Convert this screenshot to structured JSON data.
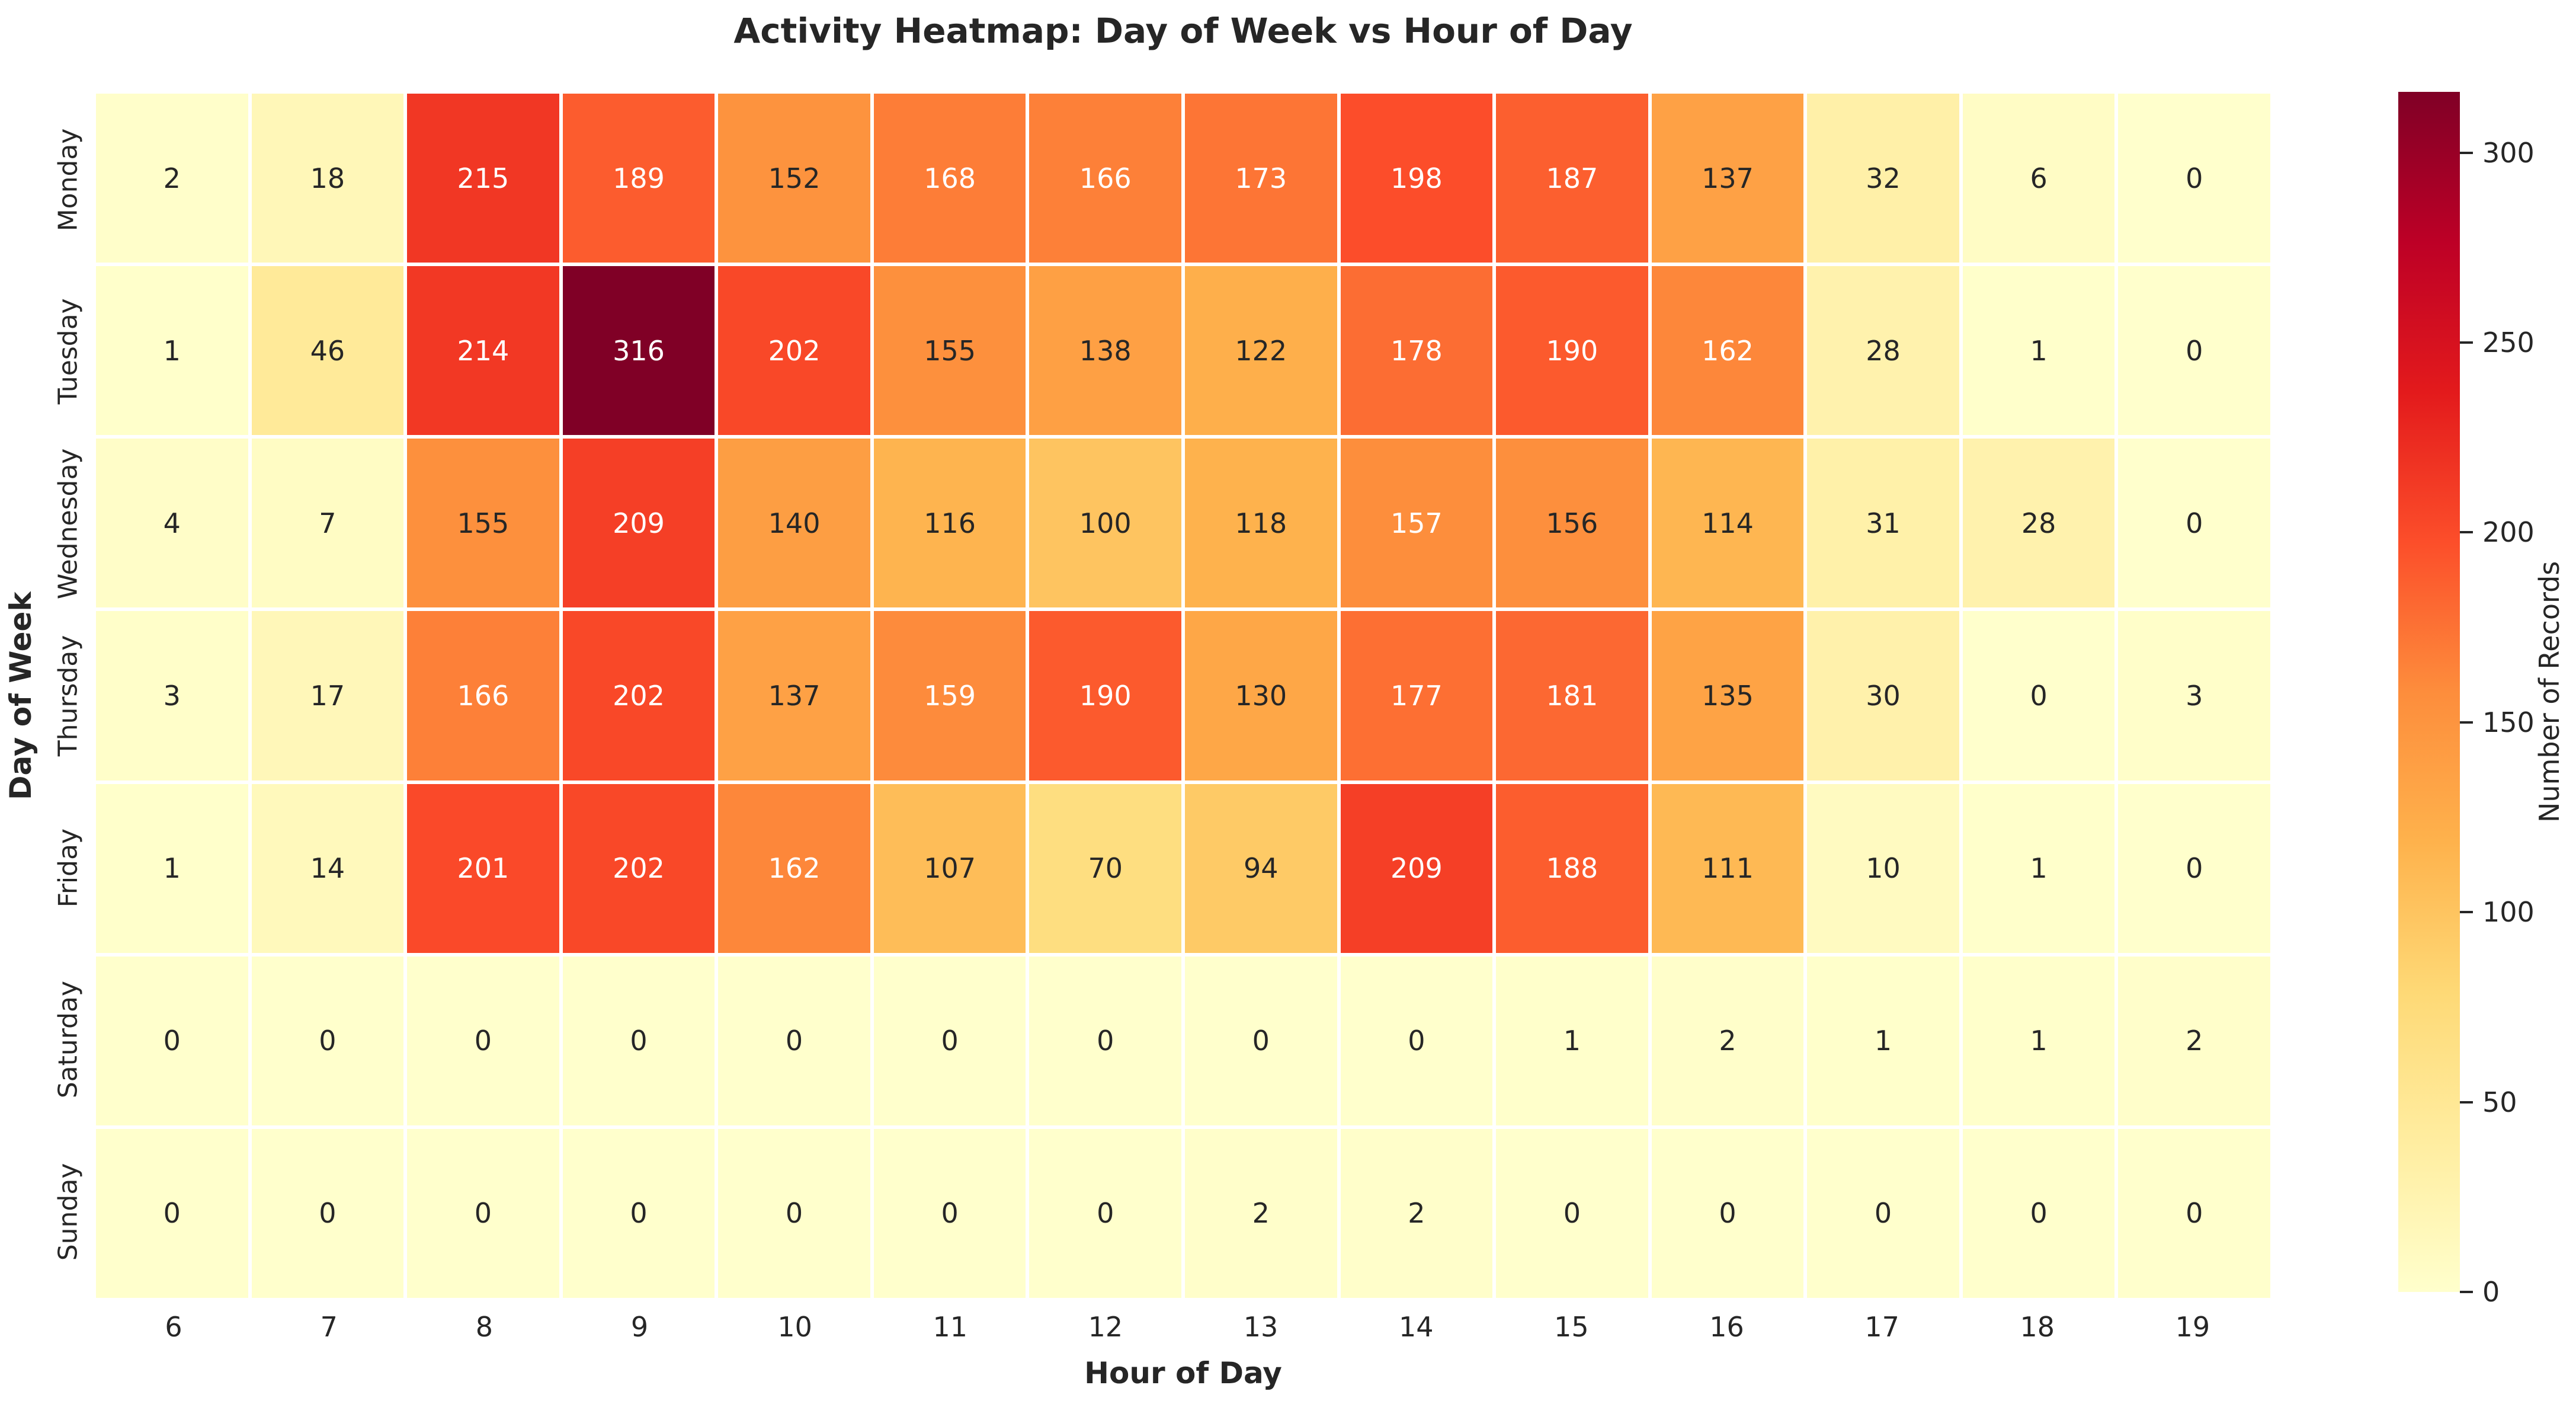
{
  "title": "Activity Heatmap: Day of Week vs Hour of Day",
  "colors": {
    "background": "#ffffff",
    "annotation_dark": "#262626",
    "annotation_light": "#ffffff",
    "gridline": "#ffffff",
    "colormap_stops": [
      "#ffffcc",
      "#ffeda0",
      "#fed976",
      "#feb24c",
      "#fd8d3c",
      "#fc4e2a",
      "#e31a1c",
      "#bd0026",
      "#800026"
    ]
  },
  "chart_data": {
    "type": "heatmap",
    "title": "Activity Heatmap: Day of Week vs Hour of Day",
    "xlabel": "Hour of Day",
    "ylabel": "Day of Week",
    "x_categories": [
      "6",
      "7",
      "8",
      "9",
      "10",
      "11",
      "12",
      "13",
      "14",
      "15",
      "16",
      "17",
      "18",
      "19"
    ],
    "y_categories": [
      "Monday",
      "Tuesday",
      "Wednesday",
      "Thursday",
      "Friday",
      "Saturday",
      "Sunday"
    ],
    "values": [
      [
        2,
        18,
        215,
        189,
        152,
        168,
        166,
        173,
        198,
        187,
        137,
        32,
        6,
        0
      ],
      [
        1,
        46,
        214,
        316,
        202,
        155,
        138,
        122,
        178,
        190,
        162,
        28,
        1,
        0
      ],
      [
        4,
        7,
        155,
        209,
        140,
        116,
        100,
        118,
        157,
        156,
        114,
        31,
        28,
        0
      ],
      [
        3,
        17,
        166,
        202,
        137,
        159,
        190,
        130,
        177,
        181,
        135,
        30,
        0,
        3
      ],
      [
        1,
        14,
        201,
        202,
        162,
        107,
        70,
        94,
        209,
        188,
        111,
        10,
        1,
        0
      ],
      [
        0,
        0,
        0,
        0,
        0,
        0,
        0,
        0,
        0,
        1,
        2,
        1,
        1,
        2
      ],
      [
        0,
        0,
        0,
        0,
        0,
        0,
        0,
        2,
        2,
        0,
        0,
        0,
        0,
        0
      ]
    ],
    "annotated": true,
    "grid": false,
    "colormap": "YlOrRd",
    "colorbar": {
      "label": "Number of Records",
      "vmin": 0,
      "vmax": 316,
      "ticks": [
        0,
        50,
        100,
        150,
        200,
        250,
        300
      ],
      "position": "right"
    }
  }
}
